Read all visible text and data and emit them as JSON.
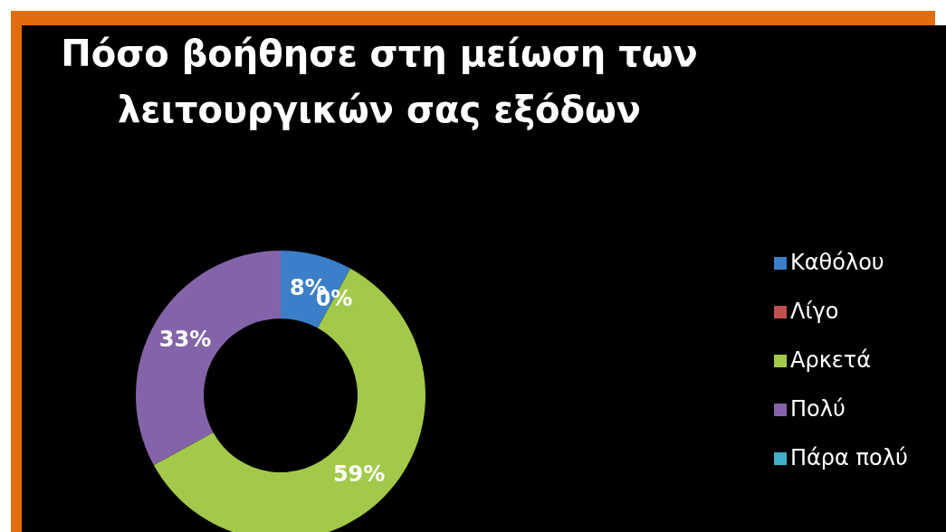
{
  "chart_data": {
    "type": "donut",
    "title": "Πόσο βοήθησε στη μείωση των λειτουργικών σας εξόδων",
    "categories": [
      "Καθόλου",
      "Λίγο",
      "Αρκετά",
      "Πολύ",
      "Πάρα πολύ"
    ],
    "values": [
      8,
      0,
      59,
      33,
      0
    ],
    "colors": [
      "#3b7fc8",
      "#c0504d",
      "#a2c94a",
      "#8464a8",
      "#3fb0c8"
    ],
    "value_labels": [
      "8%",
      "0%",
      "59%",
      "33%",
      null
    ],
    "legend": "right"
  }
}
